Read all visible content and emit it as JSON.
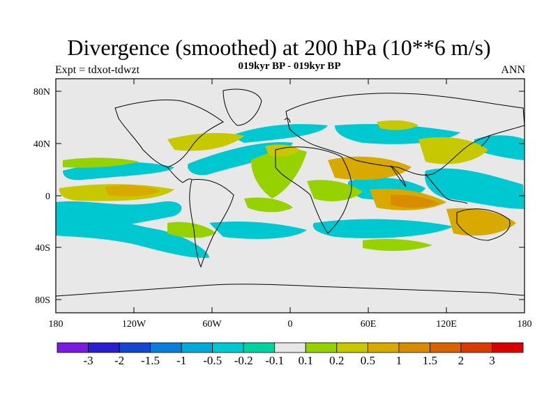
{
  "title": "Divergence (smoothed) at 200 hPa (10**6 m/s)",
  "subtitle": "019kyr BP - 019kyr BP",
  "left_label": "Expt = tdxot-tdwzt",
  "right_label": "ANN",
  "map": {
    "background_color": "#e8e8e8",
    "y_tick_labels": [
      "80N",
      "40N",
      "0",
      "40S",
      "80S"
    ],
    "x_tick_labels": [
      "180",
      "120W",
      "60W",
      "0",
      "60E",
      "120E",
      "180"
    ]
  },
  "colorbar": {
    "colors": [
      "#7a1be0",
      "#2a1ed0",
      "#1446d0",
      "#0a7ed8",
      "#00aad8",
      "#00c8d0",
      "#00d2a0",
      "#e6e6e6",
      "#96d200",
      "#c8c800",
      "#d8aa00",
      "#d88c00",
      "#d86400",
      "#d83c00",
      "#d80000"
    ],
    "labels": [
      "-3",
      "-2",
      "-1.5",
      "-1",
      "-0.5",
      "-0.2",
      "-0.1",
      "0.1",
      "0.2",
      "0.5",
      "1",
      "1.5",
      "2",
      "3"
    ]
  }
}
